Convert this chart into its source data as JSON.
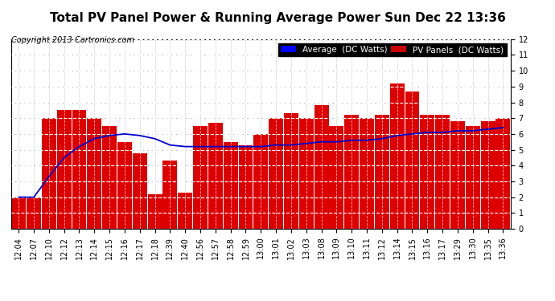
{
  "title": "Total PV Panel Power & Running Average Power Sun Dec 22 13:36",
  "copyright": "Copyright 2013 Cartronics.com",
  "ylim": [
    0.0,
    12.0
  ],
  "yticks": [
    0.0,
    1.0,
    2.0,
    3.0,
    4.0,
    5.0,
    6.0,
    7.0,
    8.0,
    9.0,
    10.0,
    11.0,
    12.0
  ],
  "x_labels": [
    "12:04",
    "12:07",
    "12:10",
    "12:12",
    "12:13",
    "12:14",
    "12:15",
    "12:16",
    "12:17",
    "12:18",
    "12:39",
    "12:40",
    "12:56",
    "12:57",
    "12:58",
    "12:59",
    "13:00",
    "13:01",
    "13:02",
    "13:03",
    "13:08",
    "13:09",
    "13:10",
    "13:11",
    "13:12",
    "13:14",
    "13:15",
    "13:16",
    "13:17",
    "13:29",
    "13:30",
    "13:35",
    "13:36"
  ],
  "bar_values": [
    2.0,
    2.0,
    7.0,
    7.5,
    7.5,
    7.0,
    6.5,
    5.5,
    4.8,
    2.2,
    4.3,
    2.3,
    6.5,
    6.7,
    5.5,
    5.3,
    6.0,
    7.0,
    7.3,
    7.0,
    7.8,
    6.5,
    7.2,
    7.0,
    7.2,
    9.2,
    8.7,
    7.2,
    7.2,
    6.8,
    6.5,
    6.8,
    7.0
  ],
  "avg_values": [
    2.0,
    2.0,
    3.3,
    4.5,
    5.2,
    5.7,
    5.9,
    6.0,
    5.9,
    5.7,
    5.3,
    5.2,
    5.2,
    5.2,
    5.2,
    5.2,
    5.2,
    5.3,
    5.3,
    5.4,
    5.5,
    5.5,
    5.6,
    5.6,
    5.7,
    5.9,
    6.0,
    6.1,
    6.1,
    6.2,
    6.2,
    6.3,
    6.4
  ],
  "bar_color": "#dd0000",
  "avg_color": "#0000cc",
  "bg_color": "#ffffff",
  "grid_color_outer": "#aaaaaa",
  "grid_color_inner": "#ffffff",
  "legend_avg_bg": "#0000ff",
  "legend_pv_bg": "#cc0000",
  "title_fontsize": 11,
  "copyright_fontsize": 7,
  "tick_fontsize": 7,
  "legend_fontsize": 7.5
}
